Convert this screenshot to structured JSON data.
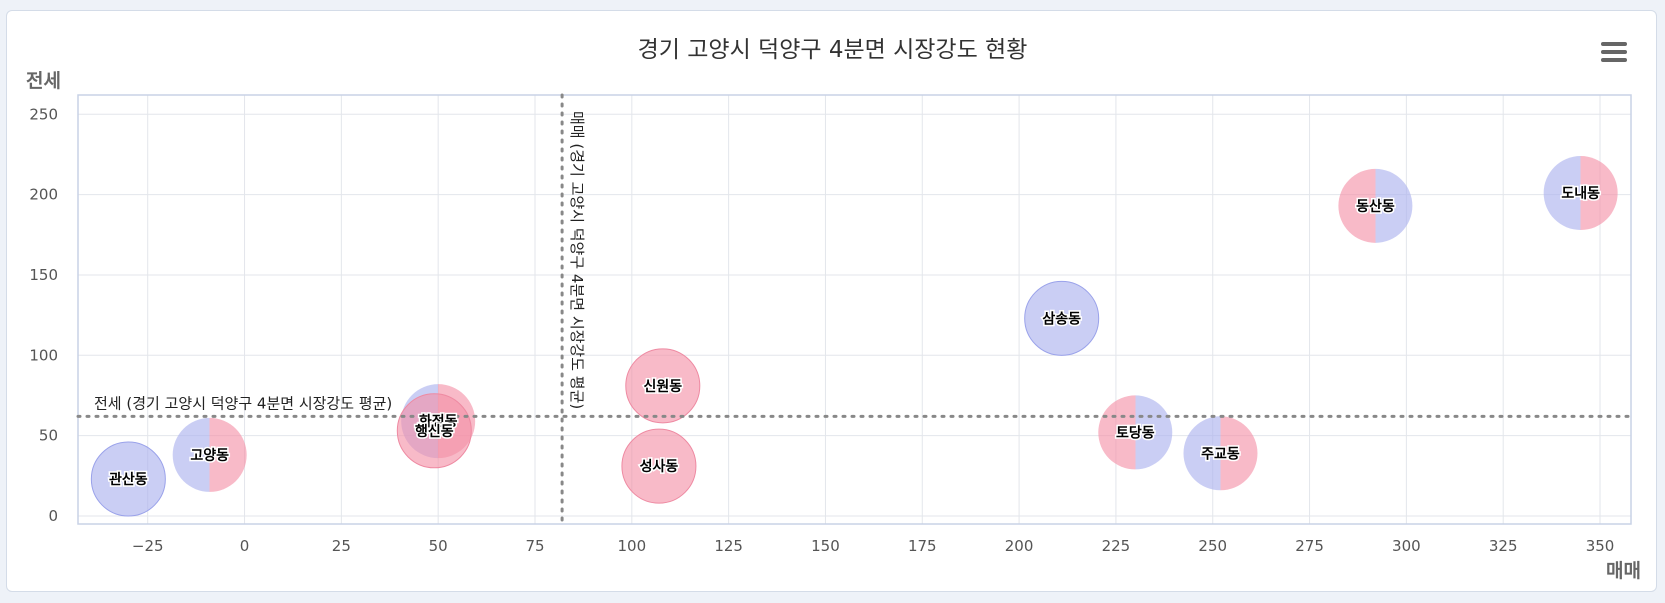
{
  "chart_data": {
    "type": "bubble",
    "title": "경기 고양시 덕양구 4분면 시장강도 현황",
    "xlabel": "매매",
    "ylabel": "전세",
    "xlim": [
      -43,
      358
    ],
    "ylim": [
      -5,
      262
    ],
    "x_ticks": [
      -25,
      0,
      25,
      50,
      75,
      100,
      125,
      150,
      175,
      200,
      225,
      250,
      275,
      300,
      325,
      350
    ],
    "y_ticks": [
      0,
      50,
      100,
      150,
      200,
      250
    ],
    "grid": true,
    "colors": {
      "blue": "#aab0ee",
      "pink": "#f48fa6",
      "avg_line": "#888888"
    },
    "x_average": 82,
    "y_average": 62,
    "x_average_label": "매매 (경기 고양시 덕양구 4분면 시장강도 평균)",
    "y_average_label": "전세 (경기 고양시 덕양구 4분면 시장강도 평균)",
    "points": [
      {
        "name": "관산동",
        "x": -30,
        "y": 23,
        "fill": "blue"
      },
      {
        "name": "고양동",
        "x": -9,
        "y": 38,
        "fill": "split-blue-pink"
      },
      {
        "name": "화정동",
        "x": 50,
        "y": 59,
        "fill": "split-blue-pink"
      },
      {
        "name": "행신동",
        "x": 49,
        "y": 53,
        "fill": "pink"
      },
      {
        "name": "신원동",
        "x": 108,
        "y": 81,
        "fill": "pink"
      },
      {
        "name": "성사동",
        "x": 107,
        "y": 31,
        "fill": "pink"
      },
      {
        "name": "삼송동",
        "x": 211,
        "y": 123,
        "fill": "blue"
      },
      {
        "name": "토당동",
        "x": 230,
        "y": 52,
        "fill": "split-pink-blue"
      },
      {
        "name": "주교동",
        "x": 252,
        "y": 39,
        "fill": "split-blue-pink"
      },
      {
        "name": "동산동",
        "x": 292,
        "y": 193,
        "fill": "split-pink-blue"
      },
      {
        "name": "도내동",
        "x": 345,
        "y": 201,
        "fill": "split-blue-pink"
      }
    ]
  }
}
